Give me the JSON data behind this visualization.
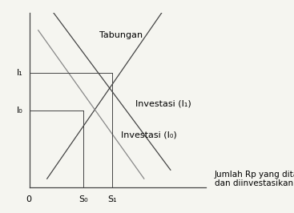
{
  "xlabel_text": "Jumlah Rp yang ditabung\ndan diinvestasikan",
  "tabungan_label": "Tabungan",
  "investasi_I1_label": "Investasi (I₁)",
  "investasi_I0_label": "Investasi (I₀)",
  "x_label_0": "0",
  "x_label_S0": "S₀",
  "x_label_S1": "S₁",
  "y_label_I0": "I₀",
  "y_label_I1": "I₁",
  "xlim": [
    0,
    10
  ],
  "ylim": [
    0,
    10
  ],
  "savings_line": {
    "x": [
      1.0,
      7.5
    ],
    "y": [
      0.5,
      10.0
    ]
  },
  "invest_I1_line": {
    "x": [
      1.0,
      8.0
    ],
    "y": [
      10.5,
      1.0
    ]
  },
  "invest_I0_line": {
    "x": [
      0.5,
      6.5
    ],
    "y": [
      9.0,
      0.5
    ]
  },
  "S0": 3.05,
  "S1": 4.7,
  "I0": 4.4,
  "I1": 6.55,
  "line_color": "#444444",
  "invest_I0_color": "#888888",
  "bg_color": "#f5f5f0",
  "font_size": 8,
  "label_font_size": 8
}
